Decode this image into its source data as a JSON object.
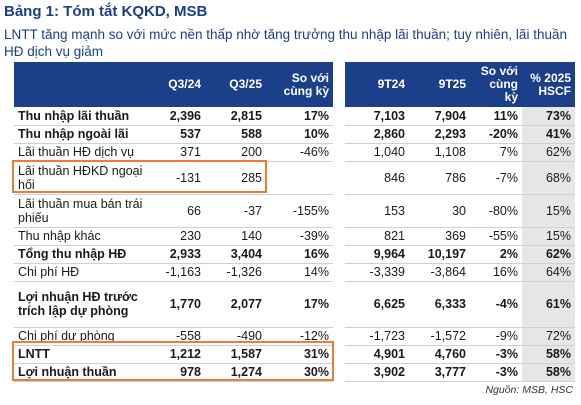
{
  "title": "Bảng 1: Tóm tắt KQKD, MSB",
  "subtitle": "LNTT tăng mạnh so với mức nền thấp nhờ tăng trưởng thu nhập lãi thuần; tuy nhiên, lãi thuần HĐ dịch vụ giảm",
  "headers": [
    "",
    "Q3/24",
    "Q3/25",
    "So với cùng kỳ",
    "9T24",
    "9T25",
    "So với cùng kỳ",
    "% 2025 HSCF"
  ],
  "rows": [
    {
      "label": "Thu nhập lãi thuần",
      "q324": "2,396",
      "q325": "2,815",
      "yoy_q": "17%",
      "t924": "7,103",
      "t925": "7,904",
      "yoy_9t": "11%",
      "hscf": "73%"
    },
    {
      "label": "Thu nhập ngoài lãi",
      "q324": "537",
      "q325": "588",
      "yoy_q": "10%",
      "t924": "2,860",
      "t925": "2,293",
      "yoy_9t": "-20%",
      "hscf": "41%"
    },
    {
      "label": "Lãi thuần HĐ dịch vụ",
      "q324": "371",
      "q325": "200",
      "yoy_q": "-46%",
      "t924": "1,040",
      "t925": "1,108",
      "yoy_9t": "7%",
      "hscf": "62%"
    },
    {
      "label": "Lãi thuần HĐKD ngoại hối",
      "q324": "-131",
      "q325": "285",
      "yoy_q": "",
      "t924": "846",
      "t925": "786",
      "yoy_9t": "-7%",
      "hscf": "68%"
    },
    {
      "label": "Lãi thuần mua bán trái phiếu",
      "q324": "66",
      "q325": "-37",
      "yoy_q": "-155%",
      "t924": "153",
      "t925": "30",
      "yoy_9t": "-80%",
      "hscf": "15%"
    },
    {
      "label": "Thu nhập khác",
      "q324": "230",
      "q325": "140",
      "yoy_q": "-39%",
      "t924": "821",
      "t925": "369",
      "yoy_9t": "-55%",
      "hscf": "15%"
    },
    {
      "label": "Tổng thu nhập HĐ",
      "q324": "2,933",
      "q325": "3,404",
      "yoy_q": "16%",
      "t924": "9,964",
      "t925": "10,197",
      "yoy_9t": "2%",
      "hscf": "62%"
    },
    {
      "label": "Chi phí HĐ",
      "q324": "-1,163",
      "q325": "-1,326",
      "yoy_q": "14%",
      "t924": "-3,339",
      "t925": "-3,864",
      "yoy_9t": "16%",
      "hscf": "64%"
    },
    {
      "label": "Lợi nhuận HĐ trước trích lập dự phòng",
      "q324": "1,770",
      "q325": "2,077",
      "yoy_q": "17%",
      "t924": "6,625",
      "t925": "6,333",
      "yoy_9t": "-4%",
      "hscf": "61%"
    },
    {
      "label": "Chi phí dự phòng",
      "q324": "-558",
      "q325": "-490",
      "yoy_q": "-12%",
      "t924": "-1,723",
      "t925": "-1,572",
      "yoy_9t": "-9%",
      "hscf": "72%"
    },
    {
      "label": "LNTT",
      "q324": "1,212",
      "q325": "1,587",
      "yoy_q": "31%",
      "t924": "4,901",
      "t925": "4,760",
      "yoy_9t": "-3%",
      "hscf": "58%"
    },
    {
      "label": "Lợi nhuận thuần",
      "q324": "978",
      "q325": "1,274",
      "yoy_q": "30%",
      "t924": "3,902",
      "t925": "3,777",
      "yoy_9t": "-3%",
      "hscf": "58%"
    }
  ],
  "source": "Nguồn: MSB, HSC",
  "colors": {
    "header_bg": "#1c3f8a",
    "title": "#1c3f8a",
    "highlight": "#ed7d31",
    "shade": "#e6e6e6"
  }
}
